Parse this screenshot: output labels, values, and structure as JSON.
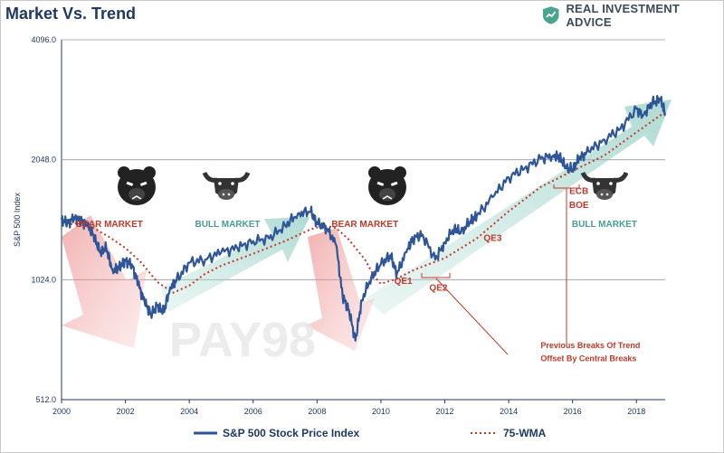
{
  "header": {
    "title": "Market Vs. Trend",
    "brand": "REAL INVESTMENT ADVICE"
  },
  "colors": {
    "price": "#2e5597",
    "wma": "#c0392b",
    "bear": "#e06060",
    "bull": "#7fc7b8",
    "note": "#c0392b",
    "bull_text": "#4a9d8e",
    "axis_text": "#1f3864"
  },
  "watermark": "PAY98",
  "chart_data": {
    "type": "line",
    "title": "Market Vs. Trend",
    "ylabel": "S&P 500 Index",
    "xlabel": "",
    "y_scale": "log2",
    "ylim": [
      512,
      4096
    ],
    "xlim": [
      2000,
      2018.9
    ],
    "y_ticks": [
      "4096.0",
      "2048.0",
      "1024.0",
      "512.0"
    ],
    "x_ticks": [
      "2000",
      "2002",
      "2004",
      "2006",
      "2008",
      "2010",
      "2012",
      "2014",
      "2016",
      "2018"
    ],
    "grid": "horizontal",
    "legend_position": "bottom",
    "series": [
      {
        "name": "S&P 500 Stock Price Index",
        "style": "solid",
        "x": [
          2000.0,
          2000.2,
          2000.4,
          2000.6,
          2000.8,
          2001.0,
          2001.2,
          2001.4,
          2001.6,
          2001.8,
          2002.0,
          2002.2,
          2002.4,
          2002.6,
          2002.8,
          2003.0,
          2003.2,
          2003.4,
          2003.6,
          2004.0,
          2004.5,
          2005.0,
          2005.5,
          2006.0,
          2006.5,
          2007.0,
          2007.4,
          2007.8,
          2008.0,
          2008.3,
          2008.6,
          2008.8,
          2009.0,
          2009.2,
          2009.4,
          2009.7,
          2010.0,
          2010.3,
          2010.5,
          2010.8,
          2011.0,
          2011.3,
          2011.7,
          2012.0,
          2012.3,
          2012.5,
          2012.8,
          2013.0,
          2013.5,
          2014.0,
          2014.5,
          2015.0,
          2015.4,
          2015.6,
          2015.8,
          2016.0,
          2016.2,
          2016.5,
          2017.0,
          2017.5,
          2018.0,
          2018.2,
          2018.5,
          2018.75,
          2018.9
        ],
        "y": [
          1450,
          1420,
          1470,
          1440,
          1400,
          1330,
          1200,
          1230,
          1080,
          1100,
          1140,
          1120,
          1000,
          900,
          840,
          880,
          850,
          980,
          1020,
          1130,
          1150,
          1200,
          1230,
          1280,
          1300,
          1400,
          1500,
          1520,
          1420,
          1380,
          1250,
          930,
          860,
          720,
          910,
          1040,
          1120,
          1180,
          1060,
          1200,
          1300,
          1330,
          1150,
          1270,
          1380,
          1340,
          1440,
          1480,
          1650,
          1850,
          1950,
          2060,
          2100,
          2080,
          1950,
          1940,
          2060,
          2150,
          2300,
          2450,
          2750,
          2650,
          2850,
          2900,
          2680
        ]
      },
      {
        "name": "75-WMA",
        "style": "dotted",
        "x": [
          2000.0,
          2000.5,
          2001.0,
          2001.5,
          2002.0,
          2002.5,
          2003.0,
          2003.5,
          2004.0,
          2004.5,
          2005.0,
          2006.0,
          2007.0,
          2007.8,
          2008.2,
          2008.6,
          2009.0,
          2009.5,
          2009.8,
          2010.0,
          2010.5,
          2011.0,
          2011.5,
          2012.0,
          2013.0,
          2014.0,
          2015.0,
          2016.0,
          2017.0,
          2018.0,
          2018.9
        ],
        "y": [
          1400,
          1420,
          1380,
          1310,
          1230,
          1130,
          1010,
          950,
          990,
          1060,
          1110,
          1190,
          1280,
          1370,
          1400,
          1380,
          1290,
          1150,
          1040,
          1000,
          1030,
          1080,
          1120,
          1160,
          1300,
          1520,
          1750,
          1920,
          2100,
          2400,
          2700
        ]
      }
    ],
    "annotations": [
      {
        "text": "BEAR MARKET",
        "x": 2001.5,
        "y": 1390
      },
      {
        "text": "BULL MARKET",
        "x": 2005.2,
        "y": 1390
      },
      {
        "text": "BEAR MARKET",
        "x": 2009.5,
        "y": 1390
      },
      {
        "text": "BULL MARKET",
        "x": 2017.0,
        "y": 1390
      },
      {
        "text": "QE1",
        "x": 2010.7,
        "y": 1000
      },
      {
        "text": "QE2",
        "x": 2011.8,
        "y": 960
      },
      {
        "text": "QE3",
        "x": 2013.5,
        "y": 1280
      },
      {
        "text": "ECB",
        "x": 2016.2,
        "y": 1680
      },
      {
        "text": "BOE",
        "x": 2016.2,
        "y": 1550
      },
      {
        "text": "Previous Breaks Of Trend",
        "x": 2015.0,
        "y": 690
      },
      {
        "text": "Offset By Central Breaks",
        "x": 2015.0,
        "y": 640
      }
    ]
  },
  "legend": {
    "items": [
      {
        "label": "S&P 500 Stock Price Index",
        "style": "solid"
      },
      {
        "label": "75-WMA",
        "style": "dotted"
      }
    ]
  }
}
